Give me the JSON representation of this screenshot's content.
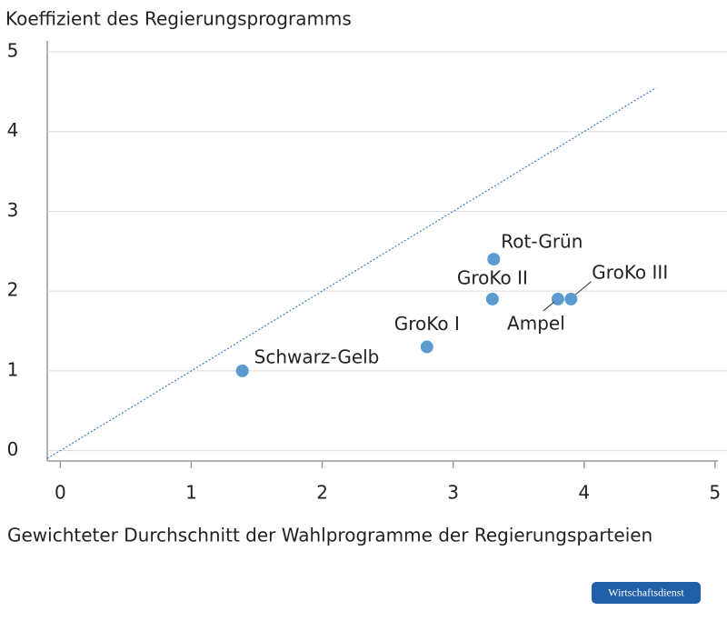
{
  "chart_data": {
    "type": "scatter",
    "title": "Koeffizient des Regierungsprogramms",
    "x_label": "Gewichteter Durchschnitt der Wahlprogramme der Regierungsparteien",
    "series": [
      {
        "color": "#5b9bd0",
        "labels": [
          "Schwarz-Gelb",
          "GroKo I",
          "GroKo II",
          "Rot-Grün",
          "Ampel",
          "GroKo III"
        ],
        "x": [
          1.39,
          2.8,
          3.3,
          3.31,
          3.8,
          3.9
        ],
        "values": [
          1.0,
          1.3,
          1.9,
          2.4,
          1.9,
          1.9
        ]
      }
    ],
    "reference_line": {
      "color": "#3a7fc1",
      "x": [
        -0.1,
        4.55
      ],
      "y": [
        -0.1,
        4.55
      ]
    },
    "xlim": [
      -0.1,
      5.05
    ],
    "xticks": [
      0,
      1,
      2,
      3,
      4,
      5
    ],
    "ylim": [
      -0.13,
      5
    ],
    "yticks": [
      0,
      1,
      2,
      3,
      4,
      5
    ],
    "grid": true,
    "source_badge": "Wirtschaftsdienst"
  }
}
